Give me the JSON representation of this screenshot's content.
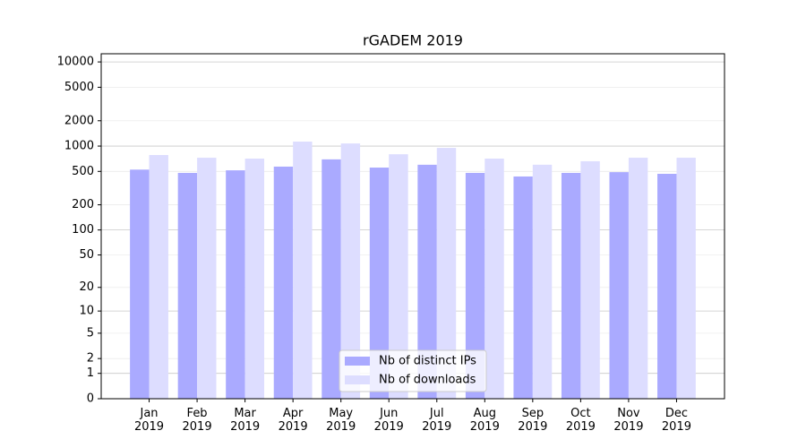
{
  "chart_data": {
    "type": "bar",
    "title": "rGADEM 2019",
    "categories": [
      "Jan\n2019",
      "Feb\n2019",
      "Mar\n2019",
      "Apr\n2019",
      "May\n2019",
      "Jun\n2019",
      "Jul\n2019",
      "Aug\n2019",
      "Sep\n2019",
      "Oct\n2019",
      "Nov\n2019",
      "Dec\n2019"
    ],
    "series": [
      {
        "name": "Nb of distinct IPs",
        "color": "#aaaaff",
        "values": [
          525,
          480,
          515,
          570,
          695,
          555,
          600,
          480,
          435,
          480,
          490,
          468
        ]
      },
      {
        "name": "Nb of downloads",
        "color": "#ddddff",
        "values": [
          783,
          727,
          710,
          1130,
          1075,
          800,
          952,
          710,
          600,
          660,
          727,
          727
        ]
      }
    ],
    "y_scale": "log1p",
    "ylim": [
      0,
      12500
    ],
    "yticks": [
      0,
      1,
      2,
      5,
      10,
      20,
      50,
      100,
      200,
      500,
      1000,
      2000,
      5000,
      10000
    ],
    "grid": true,
    "legend": "lower center"
  }
}
